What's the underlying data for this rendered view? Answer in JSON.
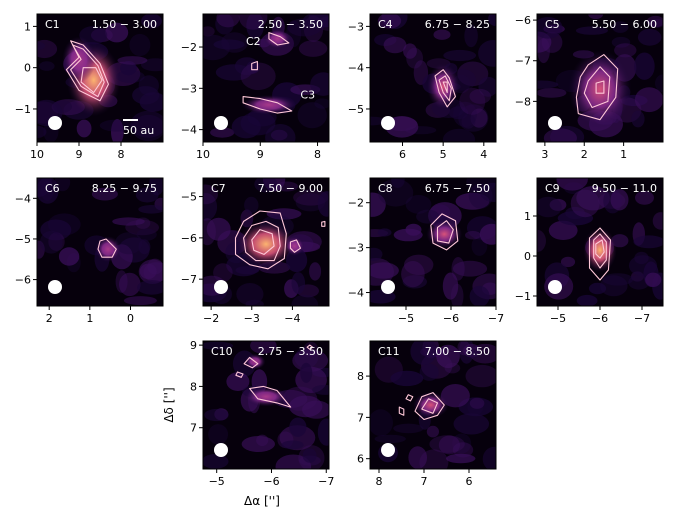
{
  "figure": {
    "xlabel": "Δα ['']",
    "ylabel": "Δδ ['']"
  },
  "colors": {
    "background": "#06000c",
    "contour": "#ffc8d8",
    "beam": "#ffffff",
    "cmap_low": "#1a0638",
    "cmap_mid": "#8a2c8e",
    "cmap_high": "#fcb470"
  },
  "chart_data": [
    {
      "type": "heatmap",
      "id": "C1",
      "label": "C1",
      "vrange": "1.50 − 3.00",
      "xlim": [
        10,
        7
      ],
      "ylim": [
        -1.8,
        1.3
      ],
      "xticks": [
        10,
        9,
        8
      ],
      "yticks": [
        1,
        0,
        -1
      ],
      "scalebar": "50 au",
      "sources": [
        {
          "x": 8.65,
          "y": -0.3,
          "sx": 0.4,
          "sy": 0.55,
          "peak": 1.0
        },
        {
          "x": 9.0,
          "y": 0.2,
          "sx": 0.25,
          "sy": 0.35,
          "peak": 0.5
        }
      ],
      "contours": [
        [
          [
            9.2,
            0.65
          ],
          [
            9.0,
            0.25
          ],
          [
            9.3,
            -0.05
          ],
          [
            9.0,
            -0.55
          ],
          [
            8.5,
            -0.8
          ],
          [
            8.3,
            -0.4
          ],
          [
            8.5,
            0.1
          ],
          [
            8.9,
            0.55
          ]
        ],
        [
          [
            9.15,
            0.55
          ],
          [
            8.95,
            0.2
          ],
          [
            9.2,
            -0.05
          ],
          [
            8.95,
            -0.45
          ],
          [
            8.55,
            -0.7
          ],
          [
            8.4,
            -0.35
          ],
          [
            8.55,
            0.05
          ],
          [
            8.9,
            0.45
          ]
        ],
        [
          [
            8.9,
            0.0
          ],
          [
            8.95,
            -0.35
          ],
          [
            8.65,
            -0.6
          ],
          [
            8.45,
            -0.3
          ],
          [
            8.6,
            0.0
          ]
        ]
      ]
    },
    {
      "type": "heatmap",
      "id": "C2C3",
      "label": "",
      "vrange": "2.50 − 3.50",
      "xlim": [
        10,
        7.8
      ],
      "ylim": [
        -4.3,
        -1.2
      ],
      "xticks": [
        10,
        9,
        8
      ],
      "yticks": [
        -2,
        -3,
        -4
      ],
      "annotations": [
        {
          "text": "C2",
          "x": 9.25,
          "y": -1.95
        },
        {
          "text": "C3",
          "x": 8.3,
          "y": -3.25
        }
      ],
      "sources": [
        {
          "x": 8.85,
          "y": -3.4,
          "sx": 0.3,
          "sy": 0.15,
          "peak": 0.5
        },
        {
          "x": 8.7,
          "y": -1.8,
          "sx": 0.15,
          "sy": 0.15,
          "peak": 0.35
        }
      ],
      "contours": [
        [
          [
            9.3,
            -3.2
          ],
          [
            9.0,
            -3.25
          ],
          [
            8.7,
            -3.35
          ],
          [
            8.45,
            -3.55
          ],
          [
            8.7,
            -3.6
          ],
          [
            9.0,
            -3.5
          ],
          [
            9.3,
            -3.35
          ]
        ],
        [
          [
            8.85,
            -1.65
          ],
          [
            8.65,
            -1.75
          ],
          [
            8.5,
            -1.9
          ],
          [
            8.7,
            -1.95
          ],
          [
            8.85,
            -1.8
          ]
        ],
        [
          [
            9.15,
            -2.4
          ],
          [
            9.05,
            -2.35
          ],
          [
            9.05,
            -2.55
          ],
          [
            9.15,
            -2.55
          ]
        ]
      ]
    },
    {
      "type": "heatmap",
      "id": "C4",
      "label": "C4",
      "vrange": "6.75 − 8.25",
      "xlim": [
        6.8,
        3.7
      ],
      "ylim": [
        -5.8,
        -2.7
      ],
      "xticks": [
        6,
        5,
        4
      ],
      "yticks": [
        -3,
        -4,
        -5
      ],
      "sources": [
        {
          "x": 5.0,
          "y": -4.45,
          "sx": 0.25,
          "sy": 0.35,
          "peak": 0.65
        }
      ],
      "contours": [
        [
          [
            5.2,
            -4.2
          ],
          [
            5.1,
            -4.6
          ],
          [
            4.9,
            -4.95
          ],
          [
            4.7,
            -4.7
          ],
          [
            4.85,
            -4.25
          ],
          [
            5.0,
            -4.05
          ]
        ],
        [
          [
            5.1,
            -4.3
          ],
          [
            5.0,
            -4.6
          ],
          [
            4.85,
            -4.8
          ],
          [
            4.8,
            -4.5
          ],
          [
            4.95,
            -4.2
          ]
        ],
        [
          [
            5.0,
            -4.35
          ],
          [
            4.9,
            -4.6
          ],
          [
            4.9,
            -4.35
          ]
        ]
      ]
    },
    {
      "type": "heatmap",
      "id": "C5",
      "label": "C5",
      "vrange": "5.50 − 6.00",
      "xlim": [
        3.2,
        0
      ],
      "ylim": [
        -9.0,
        -5.85
      ],
      "xticks": [
        3,
        2,
        1
      ],
      "yticks": [
        -6,
        -7,
        -8
      ],
      "sources": [
        {
          "x": 1.6,
          "y": -7.7,
          "sx": 0.5,
          "sy": 0.6,
          "peak": 0.6
        }
      ],
      "contours": [
        [
          [
            2.1,
            -7.4
          ],
          [
            1.9,
            -7.1
          ],
          [
            1.5,
            -6.85
          ],
          [
            1.15,
            -7.2
          ],
          [
            1.2,
            -7.9
          ],
          [
            1.6,
            -8.45
          ],
          [
            2.15,
            -8.3
          ],
          [
            2.2,
            -7.9
          ]
        ],
        [
          [
            1.9,
            -7.5
          ],
          [
            1.6,
            -7.15
          ],
          [
            1.35,
            -7.4
          ],
          [
            1.4,
            -8.0
          ],
          [
            1.8,
            -8.15
          ],
          [
            2.0,
            -7.8
          ]
        ],
        [
          [
            1.7,
            -7.55
          ],
          [
            1.5,
            -7.5
          ],
          [
            1.5,
            -7.8
          ],
          [
            1.7,
            -7.8
          ]
        ]
      ]
    },
    {
      "type": "heatmap",
      "id": "C6",
      "label": "C6",
      "vrange": "8.25 − 9.75",
      "xlim": [
        2.3,
        -0.8
      ],
      "ylim": [
        -6.65,
        -3.5
      ],
      "xticks": [
        2,
        1,
        0
      ],
      "yticks": [
        -4,
        -5,
        -6
      ],
      "sources": [
        {
          "x": 0.55,
          "y": -5.25,
          "sx": 0.2,
          "sy": 0.2,
          "peak": 0.45
        }
      ],
      "contours": [
        [
          [
            0.75,
            -5.05
          ],
          [
            0.6,
            -5.0
          ],
          [
            0.35,
            -5.25
          ],
          [
            0.45,
            -5.45
          ],
          [
            0.7,
            -5.45
          ],
          [
            0.8,
            -5.25
          ]
        ]
      ]
    },
    {
      "type": "heatmap",
      "id": "C7",
      "label": "C7",
      "vrange": "7.50 − 9.00",
      "xlim": [
        -1.8,
        -4.9
      ],
      "ylim": [
        -7.65,
        -4.55
      ],
      "xticks": [
        -2,
        -3,
        -4
      ],
      "yticks": [
        -5,
        -6,
        -7
      ],
      "sources": [
        {
          "x": -3.35,
          "y": -6.15,
          "sx": 0.45,
          "sy": 0.35,
          "peak": 1.0
        },
        {
          "x": -4.05,
          "y": -6.2,
          "sx": 0.15,
          "sy": 0.15,
          "peak": 0.4
        }
      ],
      "contours": [
        [
          [
            -2.6,
            -6.0
          ],
          [
            -2.8,
            -5.6
          ],
          [
            -3.2,
            -5.35
          ],
          [
            -3.7,
            -5.4
          ],
          [
            -3.85,
            -5.9
          ],
          [
            -3.8,
            -6.5
          ],
          [
            -3.4,
            -6.75
          ],
          [
            -2.95,
            -6.65
          ],
          [
            -2.6,
            -6.4
          ]
        ],
        [
          [
            -2.8,
            -6.0
          ],
          [
            -3.0,
            -5.7
          ],
          [
            -3.35,
            -5.6
          ],
          [
            -3.65,
            -5.75
          ],
          [
            -3.7,
            -6.2
          ],
          [
            -3.55,
            -6.55
          ],
          [
            -3.1,
            -6.55
          ],
          [
            -2.85,
            -6.35
          ]
        ],
        [
          [
            -3.0,
            -6.05
          ],
          [
            -3.2,
            -5.8
          ],
          [
            -3.5,
            -5.9
          ],
          [
            -3.55,
            -6.2
          ],
          [
            -3.3,
            -6.4
          ],
          [
            -3.05,
            -6.3
          ]
        ],
        [
          [
            -3.95,
            -6.1
          ],
          [
            -4.1,
            -6.05
          ],
          [
            -4.2,
            -6.25
          ],
          [
            -4.05,
            -6.35
          ],
          [
            -3.95,
            -6.25
          ]
        ],
        [
          [
            -4.72,
            -5.62
          ],
          [
            -4.8,
            -5.6
          ],
          [
            -4.8,
            -5.72
          ],
          [
            -4.72,
            -5.72
          ]
        ]
      ]
    },
    {
      "type": "heatmap",
      "id": "C8",
      "label": "C8",
      "vrange": "6.75 − 7.50",
      "xlim": [
        -4.2,
        -7.0
      ],
      "ylim": [
        -4.3,
        -1.45
      ],
      "xticks": [
        -5,
        -6,
        -7
      ],
      "yticks": [
        -2,
        -3,
        -4
      ],
      "sources": [
        {
          "x": -5.85,
          "y": -2.7,
          "sx": 0.25,
          "sy": 0.2,
          "peak": 0.6
        }
      ],
      "contours": [
        [
          [
            -5.55,
            -2.5
          ],
          [
            -5.8,
            -2.25
          ],
          [
            -6.1,
            -2.4
          ],
          [
            -6.15,
            -2.85
          ],
          [
            -5.9,
            -3.05
          ],
          [
            -5.6,
            -2.9
          ]
        ],
        [
          [
            -5.7,
            -2.55
          ],
          [
            -5.9,
            -2.4
          ],
          [
            -6.05,
            -2.6
          ],
          [
            -5.95,
            -2.9
          ],
          [
            -5.7,
            -2.85
          ]
        ]
      ]
    },
    {
      "type": "heatmap",
      "id": "C9",
      "label": "C9",
      "vrange": "9.50 − 11.0",
      "xlim": [
        -4.5,
        -7.5
      ],
      "ylim": [
        -1.25,
        1.95
      ],
      "xticks": [
        -5,
        -6,
        -7
      ],
      "yticks": [
        1,
        0,
        -1
      ],
      "sources": [
        {
          "x": -6.0,
          "y": 0.15,
          "sx": 0.25,
          "sy": 0.35,
          "peak": 0.85
        }
      ],
      "contours": [
        [
          [
            -5.75,
            0.45
          ],
          [
            -6.0,
            0.7
          ],
          [
            -6.25,
            0.4
          ],
          [
            -6.2,
            -0.35
          ],
          [
            -6.0,
            -0.6
          ],
          [
            -5.75,
            -0.3
          ]
        ],
        [
          [
            -5.85,
            0.4
          ],
          [
            -6.0,
            0.55
          ],
          [
            -6.15,
            0.35
          ],
          [
            -6.15,
            -0.1
          ],
          [
            -6.0,
            -0.3
          ],
          [
            -5.85,
            -0.05
          ]
        ],
        [
          [
            -5.9,
            0.3
          ],
          [
            -6.05,
            0.4
          ],
          [
            -6.1,
            0.1
          ],
          [
            -6.0,
            -0.05
          ],
          [
            -5.9,
            0.05
          ]
        ]
      ]
    },
    {
      "type": "heatmap",
      "id": "C10",
      "label": "C10",
      "vrange": "2.75 − 3.50",
      "xlim": [
        -4.75,
        -7.05
      ],
      "ylim": [
        6.0,
        9.1
      ],
      "xticks": [
        -5,
        -6,
        -7
      ],
      "yticks": [
        9,
        8,
        7
      ],
      "sources": [
        {
          "x": -5.9,
          "y": 7.75,
          "sx": 0.25,
          "sy": 0.15,
          "peak": 0.4
        },
        {
          "x": -5.7,
          "y": 8.6,
          "sx": 0.12,
          "sy": 0.12,
          "peak": 0.35
        }
      ],
      "contours": [
        [
          [
            -5.6,
            7.95
          ],
          [
            -5.75,
            7.7
          ],
          [
            -6.1,
            7.6
          ],
          [
            -6.35,
            7.5
          ],
          [
            -6.1,
            7.9
          ],
          [
            -5.85,
            8.0
          ]
        ],
        [
          [
            -5.6,
            8.7
          ],
          [
            -5.75,
            8.55
          ],
          [
            -5.65,
            8.45
          ],
          [
            -5.5,
            8.55
          ]
        ],
        [
          [
            -5.38,
            8.35
          ],
          [
            -5.48,
            8.3
          ],
          [
            -5.45,
            8.22
          ],
          [
            -5.35,
            8.27
          ]
        ],
        [
          [
            -6.7,
            9.0
          ],
          [
            -6.75,
            8.95
          ],
          [
            -6.7,
            8.9
          ],
          [
            -6.65,
            8.95
          ]
        ]
      ]
    },
    {
      "type": "heatmap",
      "id": "C11",
      "label": "C11",
      "vrange": "7.00 − 8.50",
      "xlim": [
        8.2,
        5.4
      ],
      "ylim": [
        5.75,
        8.85
      ],
      "xticks": [
        8,
        7,
        6
      ],
      "yticks": [
        8,
        7,
        6
      ],
      "sources": [
        {
          "x": 6.85,
          "y": 7.3,
          "sx": 0.25,
          "sy": 0.2,
          "peak": 0.6
        }
      ],
      "contours": [
        [
          [
            7.2,
            7.15
          ],
          [
            7.05,
            7.5
          ],
          [
            6.8,
            7.6
          ],
          [
            6.55,
            7.3
          ],
          [
            6.7,
            7.05
          ],
          [
            7.0,
            6.95
          ]
        ],
        [
          [
            7.05,
            7.2
          ],
          [
            6.9,
            7.45
          ],
          [
            6.7,
            7.35
          ],
          [
            6.8,
            7.1
          ]
        ],
        [
          [
            7.55,
            7.25
          ],
          [
            7.45,
            7.2
          ],
          [
            7.45,
            7.05
          ],
          [
            7.55,
            7.1
          ]
        ],
        [
          [
            7.35,
            7.55
          ],
          [
            7.25,
            7.5
          ],
          [
            7.3,
            7.4
          ],
          [
            7.4,
            7.45
          ]
        ]
      ]
    }
  ]
}
